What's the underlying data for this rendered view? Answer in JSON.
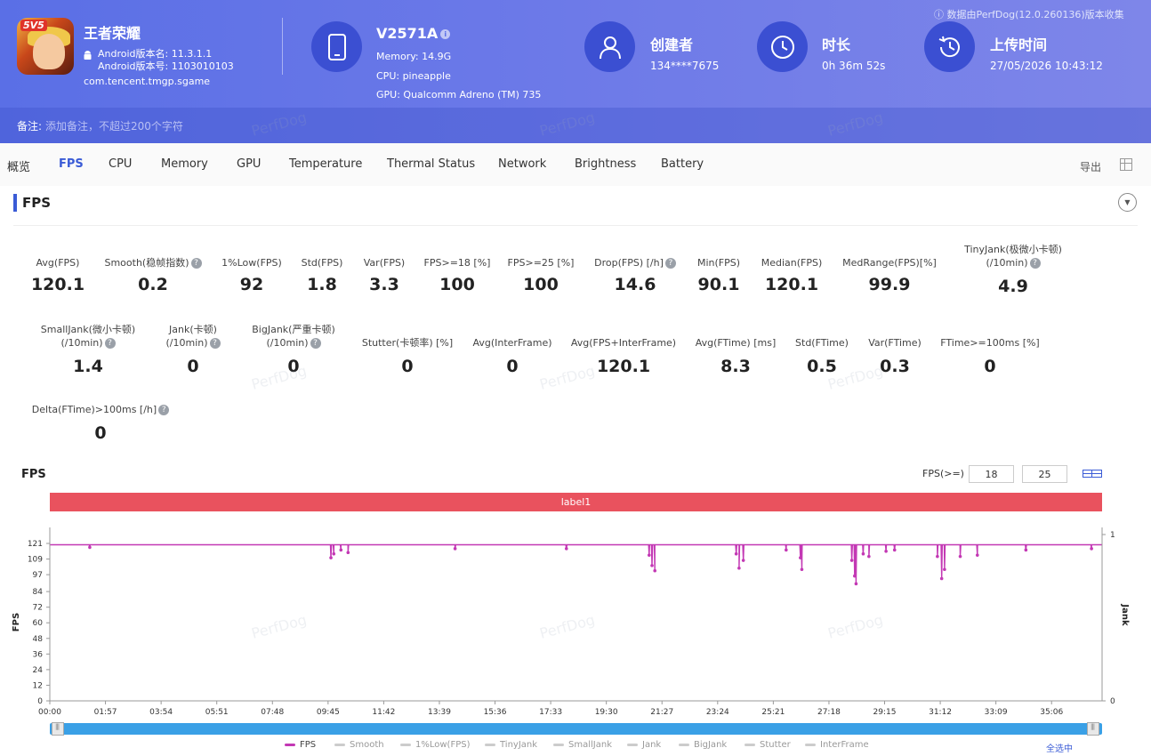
{
  "header": {
    "app_name": "王者荣耀",
    "android_version_name": "Android版本名: 11.3.1.1",
    "android_version_code": "Android版本号: 1103010103",
    "package": "com.tencent.tmgp.sgame",
    "device": {
      "model": "V2571A",
      "memory": "Memory: 14.9G",
      "cpu": "CPU: pineapple",
      "gpu": "GPU: Qualcomm Adreno (TM) 735"
    },
    "creator_label": "创建者",
    "creator_value": "134****7675",
    "duration_label": "时长",
    "duration_value": "0h 36m 52s",
    "upload_label": "上传时间",
    "upload_value": "27/05/2026 10:43:12",
    "collect_note": "数据由PerfDog(12.0.260136)版本收集",
    "icon_badge": "5V5",
    "note_label": "备注:",
    "note_placeholder": "添加备注，不超过200个字符"
  },
  "tabs": [
    "概览",
    "FPS",
    "CPU",
    "Memory",
    "GPU",
    "Temperature",
    "Thermal Status",
    "Network",
    "Brightness",
    "Battery"
  ],
  "active_tab": "FPS",
  "export_label": "导出",
  "section_title": "FPS",
  "stats_row1": [
    {
      "label": "Avg(FPS)",
      "value": "120.1"
    },
    {
      "label": "Smooth(稳帧指数)",
      "value": "0.2"
    },
    {
      "label": "1%Low(FPS)",
      "value": "92"
    },
    {
      "label": "Std(FPS)",
      "value": "1.8"
    },
    {
      "label": "Var(FPS)",
      "value": "3.3"
    },
    {
      "label": "FPS>=18 [%]",
      "value": "100"
    },
    {
      "label": "FPS>=25 [%]",
      "value": "100"
    },
    {
      "label": "Drop(FPS) [/h]",
      "value": "14.6"
    },
    {
      "label": "Min(FPS)",
      "value": "90.1"
    },
    {
      "label": "Median(FPS)",
      "value": "120.1"
    },
    {
      "label": "MedRange(FPS)[%]",
      "value": "99.9"
    },
    {
      "label": "TinyJank(极微小卡顿)",
      "label2": "(/10min)",
      "value": "4.9"
    }
  ],
  "stats_row2": [
    {
      "label": "SmallJank(微小卡顿)",
      "label2": "(/10min)",
      "value": "1.4"
    },
    {
      "label": "Jank(卡顿)",
      "label2": "(/10min)",
      "value": "0"
    },
    {
      "label": "BigJank(严重卡顿)",
      "label2": "(/10min)",
      "value": "0"
    },
    {
      "label": "Stutter(卡顿率) [%]",
      "value": "0"
    },
    {
      "label": "Avg(InterFrame)",
      "value": "0"
    },
    {
      "label": "Avg(FPS+InterFrame)",
      "value": "120.1"
    },
    {
      "label": "Avg(FTime) [ms]",
      "value": "8.3"
    },
    {
      "label": "Std(FTime)",
      "value": "0.5"
    },
    {
      "label": "Var(FTime)",
      "value": "0.3"
    },
    {
      "label": "FTime>=100ms [%]",
      "value": "0"
    }
  ],
  "stats_row3": [
    {
      "label": "Delta(FTime)>100ms [/h]",
      "value": "0"
    }
  ],
  "chart_header": {
    "title": "FPS",
    "fps_ge_label": "FPS(>=)",
    "threshold1": "18",
    "threshold2": "25",
    "label_bar": "label1"
  },
  "legend": [
    "FPS",
    "Smooth",
    "1%Low(FPS)",
    "TinyJank",
    "SmallJank",
    "Jank",
    "BigJank",
    "Stutter",
    "InterFrame"
  ],
  "select_all": "全选中",
  "watermark": "PerfDog",
  "chart_data": {
    "type": "line",
    "title": "FPS",
    "ylabel": "FPS",
    "y2label": "Jank",
    "yticks": [
      0,
      12,
      24,
      36,
      48,
      60,
      72,
      84,
      97,
      109,
      121
    ],
    "ylim": [
      0,
      121
    ],
    "y2ticks": [
      0,
      1
    ],
    "xticks": [
      "00:00",
      "01:57",
      "03:54",
      "05:51",
      "07:48",
      "09:45",
      "11:42",
      "13:39",
      "15:36",
      "17:33",
      "19:30",
      "21:27",
      "23:24",
      "25:21",
      "27:18",
      "29:15",
      "31:12",
      "33:09",
      "35:06"
    ],
    "x_total_minutes": 36.87,
    "baseline": 120,
    "color": "#c338b4",
    "dips": [
      {
        "t": 1.4,
        "v": 118
      },
      {
        "t": 9.85,
        "v": 110
      },
      {
        "t": 9.95,
        "v": 113
      },
      {
        "t": 10.2,
        "v": 116
      },
      {
        "t": 10.45,
        "v": 114
      },
      {
        "t": 14.2,
        "v": 117
      },
      {
        "t": 18.1,
        "v": 117
      },
      {
        "t": 21.0,
        "v": 112
      },
      {
        "t": 21.1,
        "v": 104
      },
      {
        "t": 21.2,
        "v": 100
      },
      {
        "t": 24.05,
        "v": 113
      },
      {
        "t": 24.15,
        "v": 102
      },
      {
        "t": 24.3,
        "v": 108
      },
      {
        "t": 25.8,
        "v": 116
      },
      {
        "t": 26.3,
        "v": 110
      },
      {
        "t": 26.35,
        "v": 101
      },
      {
        "t": 28.1,
        "v": 108
      },
      {
        "t": 28.2,
        "v": 96
      },
      {
        "t": 28.25,
        "v": 90
      },
      {
        "t": 28.5,
        "v": 113
      },
      {
        "t": 28.7,
        "v": 111
      },
      {
        "t": 29.3,
        "v": 115
      },
      {
        "t": 29.6,
        "v": 116
      },
      {
        "t": 31.1,
        "v": 111
      },
      {
        "t": 31.25,
        "v": 94
      },
      {
        "t": 31.35,
        "v": 101
      },
      {
        "t": 31.9,
        "v": 111
      },
      {
        "t": 32.5,
        "v": 112
      },
      {
        "t": 34.2,
        "v": 116
      },
      {
        "t": 36.5,
        "v": 117
      }
    ]
  }
}
